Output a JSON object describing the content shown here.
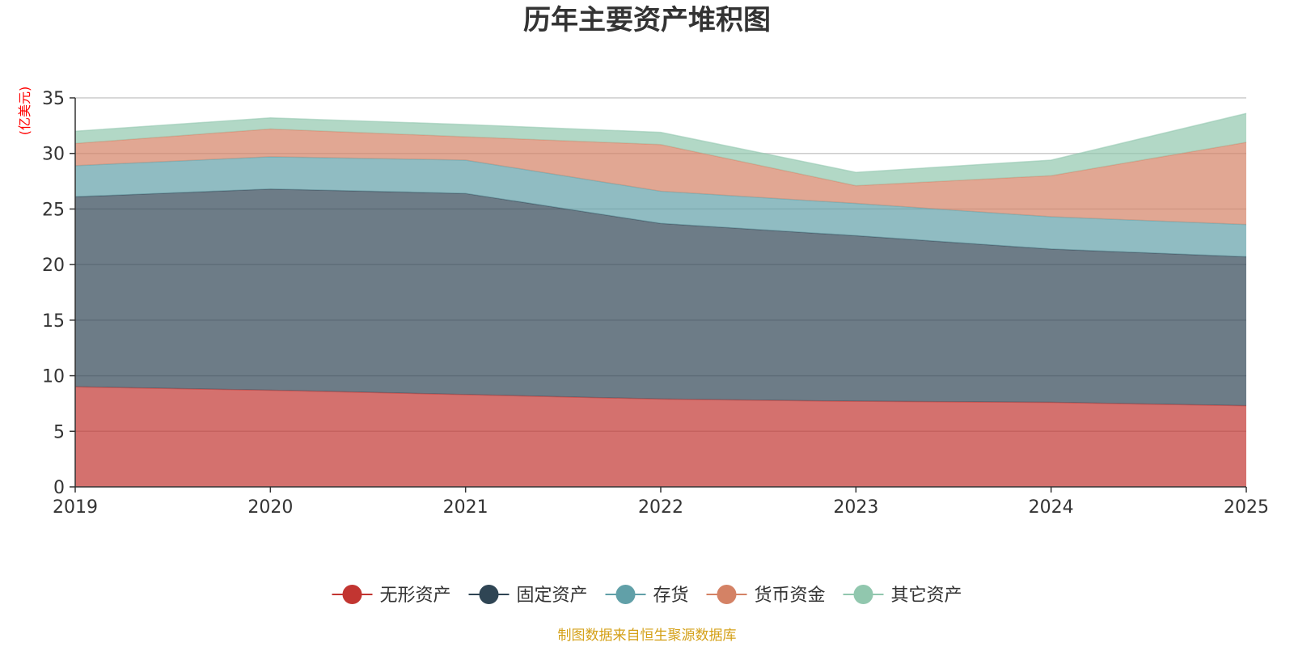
{
  "chart_data": {
    "type": "area",
    "title": "历年主要资产堆积图",
    "ylabel": "(亿美元)",
    "xlabel": "",
    "categories": [
      "2019",
      "2020",
      "2021",
      "2022",
      "2023",
      "2024",
      "2025"
    ],
    "ylim": [
      0,
      35
    ],
    "yticks": [
      0,
      5,
      10,
      15,
      20,
      25,
      30,
      35
    ],
    "stacked": true,
    "grid": true,
    "legend_position": "bottom-center",
    "series": [
      {
        "name": "无形资产",
        "color": "#c23531",
        "values": [
          9.0,
          8.7,
          8.3,
          7.9,
          7.7,
          7.6,
          7.3
        ]
      },
      {
        "name": "固定资产",
        "color": "#2f4554",
        "values": [
          17.1,
          18.1,
          18.1,
          15.8,
          14.9,
          13.8,
          13.4
        ]
      },
      {
        "name": "存货",
        "color": "#61a0a8",
        "values": [
          2.8,
          2.9,
          3.0,
          2.9,
          2.9,
          2.9,
          2.9
        ]
      },
      {
        "name": "货币资金",
        "color": "#d48265",
        "values": [
          2.0,
          2.5,
          2.1,
          4.2,
          1.6,
          3.7,
          7.4
        ]
      },
      {
        "name": "其它资产",
        "color": "#91c7ae",
        "values": [
          1.1,
          1.0,
          1.1,
          1.1,
          1.2,
          1.4,
          2.6
        ]
      }
    ]
  },
  "footer": {
    "source_text": "制图数据来自恒生聚源数据库",
    "source_color": "#d4a017"
  },
  "colors": {
    "unit_label": "#ff0000",
    "axis": "#333333",
    "grid": "#cccccc"
  }
}
